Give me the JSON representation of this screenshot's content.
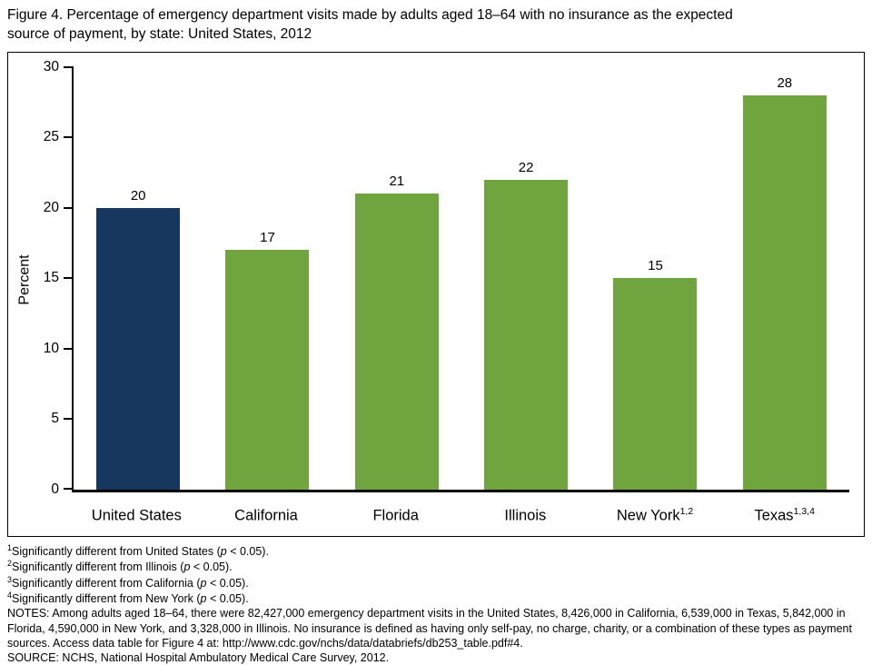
{
  "title": {
    "line1": "Figure 4. Percentage of emergency department visits made by adults aged 18–64 with no insurance as the expected",
    "line2": "source of payment, by state: United States, 2012"
  },
  "chart_data": {
    "type": "bar",
    "categories": [
      {
        "label": "United States",
        "sup": ""
      },
      {
        "label": "California",
        "sup": ""
      },
      {
        "label": "Florida",
        "sup": ""
      },
      {
        "label": "Illinois",
        "sup": ""
      },
      {
        "label": "New York",
        "sup": "1,2"
      },
      {
        "label": "Texas",
        "sup": "1,3,4"
      }
    ],
    "values": [
      20,
      17,
      21,
      22,
      15,
      28
    ],
    "bar_colors": [
      "#17375e",
      "#6fa43e",
      "#6fa43e",
      "#6fa43e",
      "#6fa43e",
      "#6fa43e"
    ],
    "ylabel": "Percent",
    "ylim": [
      0,
      30
    ],
    "yticks": [
      0,
      5,
      10,
      15,
      20,
      25,
      30
    ],
    "grid": false,
    "legend": "none"
  },
  "footnotes": [
    {
      "sup": "1",
      "pre": "Significantly different from United States (",
      "pvar": "p",
      "post": " < 0.05)."
    },
    {
      "sup": "2",
      "pre": "Significantly different from Illinois (",
      "pvar": "p",
      "post": " < 0.05)."
    },
    {
      "sup": "3",
      "pre": "Significantly different from California (",
      "pvar": "p",
      "post": " < 0.05)."
    },
    {
      "sup": "4",
      "pre": "Significantly different from New York (",
      "pvar": "p",
      "post": " < 0.05)."
    }
  ],
  "notes": "NOTES: Among adults aged 18–64, there were 82,427,000 emergency department visits in the United States, 8,426,000 in California, 6,539,000 in Texas, 5,842,000 in Florida, 4,590,000 in New York, and 3,328,000 in Illinois. No insurance is defined as having only self-pay, no charge, charity, or a combination of these types as payment sources. Access data table for Figure 4 at: http://www.cdc.gov/nchs/data/databriefs/db253_table.pdf#4.",
  "source": "SOURCE: NCHS, National Hospital Ambulatory Medical Care Survey, 2012."
}
